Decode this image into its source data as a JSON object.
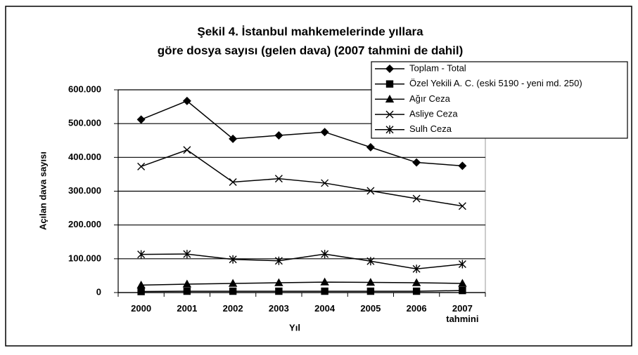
{
  "chart_data": {
    "type": "line",
    "title": [
      "Şekil 4.  İstanbul mahkemelerinde yıllara",
      "göre dosya sayısı (gelen dava) (2007 tahmini de dahil)"
    ],
    "xlabel": "Yıl",
    "ylabel": "Açılan dava sayısı",
    "categories": [
      "2000",
      "2001",
      "2002",
      "2003",
      "2004",
      "2005",
      "2006",
      "2007 tahmini"
    ],
    "series": [
      {
        "name": "Toplam - Total",
        "color": "#000000",
        "marker": "diamond",
        "values": [
          512000,
          567000,
          455000,
          465000,
          475000,
          430000,
          385000,
          375000
        ]
      },
      {
        "name": "Özel Yekili A. C. (eski 5190 - yeni md. 250)",
        "color": "#000000",
        "marker": "square",
        "values": [
          3000,
          4000,
          4000,
          4000,
          4000,
          4000,
          4000,
          6000
        ]
      },
      {
        "name": "Ağır Ceza",
        "color": "#000000",
        "marker": "triangle",
        "values": [
          22000,
          25000,
          27000,
          29000,
          31000,
          30000,
          29000,
          27000
        ]
      },
      {
        "name": "Asliye Ceza",
        "color": "#000000",
        "marker": "x",
        "values": [
          373000,
          422000,
          327000,
          337000,
          324000,
          301000,
          278000,
          256000
        ]
      },
      {
        "name": "Sulh Ceza",
        "color": "#000000",
        "marker": "asterisk",
        "values": [
          113000,
          114000,
          98000,
          94000,
          114000,
          93000,
          70000,
          84000
        ]
      }
    ],
    "ylim": [
      0,
      600000
    ],
    "yticks": [
      0,
      {
        "value": 100000,
        "label": "100.000"
      },
      {
        "value": 200000,
        "label": "200.000"
      },
      {
        "value": 300000,
        "label": "300.000"
      },
      {
        "value": 400000,
        "label": "400.000"
      },
      {
        "value": 500000,
        "label": "500.000"
      },
      {
        "value": 600000,
        "label": "600.000"
      }
    ],
    "grid": true,
    "legend": "top-right"
  }
}
